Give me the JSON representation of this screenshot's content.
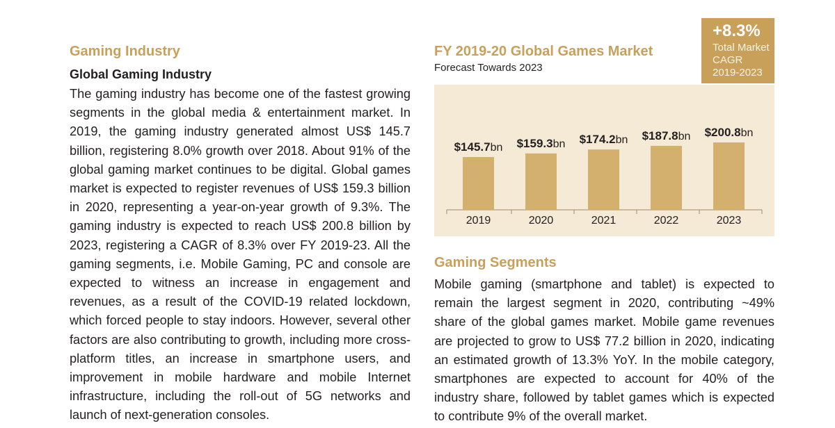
{
  "left": {
    "section_title": "Gaming Industry",
    "sub_title": "Global Gaming Industry",
    "paragraph": "The gaming industry has become one of the fastest growing segments in the global media & entertainment market. In 2019, the gaming industry generated almost US$ 145.7 billion, registering 8.0% growth over 2018. About 91% of the global gaming market continues to be digital. Global games market is expected to register revenues of US$ 159.3 billion in 2020, representing a year-on-year growth of 9.3%. The gaming industry is expected to reach US$ 200.8 billion by 2023, registering a CAGR of 8.3% over FY 2019-23. All the gaming segments, i.e. Mobile Gaming, PC and console are expected to witness an increase in engagement and revenues, as a result of the COVID-19 related lockdown, which forced people to stay indoors. However, several other factors are also contributing to growth, including more cross-platform titles, an increase in smartphone users, and improvement in mobile hardware and mobile Internet infrastructure, including the roll-out of 5G networks and launch of next-generation consoles."
  },
  "cagr": {
    "value": "+8.3%",
    "label": "Total Market CAGR 2019-2023"
  },
  "chart_data": {
    "type": "bar",
    "title": "FY 2019-20 Global Games Market",
    "subtitle": "Forecast Towards 2023",
    "categories": [
      "2019",
      "2020",
      "2021",
      "2022",
      "2023"
    ],
    "values": [
      145.7,
      159.3,
      174.2,
      187.8,
      200.8
    ],
    "data_labels": [
      "$145.7bn",
      "$159.3bn",
      "$174.2bn",
      "$187.8bn",
      "$200.8bn"
    ],
    "unit": "US$ bn",
    "bar_color": "#d4b06e",
    "background_color": "#f5ead6"
  },
  "right_section": {
    "title": "Gaming Segments",
    "paragraph": "Mobile gaming (smartphone and tablet) is expected to remain the largest segment in 2020, contributing ~49% share of the global games market. Mobile game revenues are projected to grow to US$ 77.2 billion in 2020, indicating an estimated growth of 13.3% YoY. In the mobile category, smartphones are expected to account for 40% of the industry share, followed by tablet games which is expected to contribute 9% of the overall market."
  },
  "colors": {
    "accent": "#c9a05a",
    "text": "#231f20"
  }
}
